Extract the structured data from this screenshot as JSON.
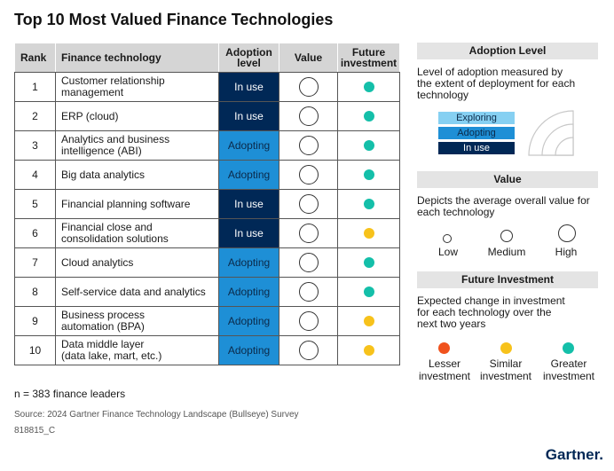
{
  "title": "Top 10 Most Valued Finance Technologies",
  "table": {
    "headers": {
      "rank": "Rank",
      "technology": "Finance technology",
      "adoption_line1": "Adoption",
      "adoption_line2": "level",
      "value": "Value",
      "future_line1": "Future",
      "future_line2": "investment"
    },
    "rows": [
      {
        "rank": "1",
        "tech_line1": "Customer relationship",
        "tech_line2": "management",
        "adoption": "In use",
        "value": "high",
        "future": "greater"
      },
      {
        "rank": "2",
        "tech_line1": "ERP (cloud)",
        "tech_line2": "",
        "adoption": "In use",
        "value": "high",
        "future": "greater"
      },
      {
        "rank": "3",
        "tech_line1": "Analytics and business",
        "tech_line2": "intelligence (ABI)",
        "adoption": "Adopting",
        "value": "high",
        "future": "greater"
      },
      {
        "rank": "4",
        "tech_line1": "Big data analytics",
        "tech_line2": "",
        "adoption": "Adopting",
        "value": "high",
        "future": "greater"
      },
      {
        "rank": "5",
        "tech_line1": "Financial planning software",
        "tech_line2": "",
        "adoption": "In use",
        "value": "high",
        "future": "greater"
      },
      {
        "rank": "6",
        "tech_line1": "Financial close and",
        "tech_line2": "consolidation solutions",
        "adoption": "In use",
        "value": "high",
        "future": "similar"
      },
      {
        "rank": "7",
        "tech_line1": "Cloud analytics",
        "tech_line2": "",
        "adoption": "Adopting",
        "value": "high",
        "future": "greater"
      },
      {
        "rank": "8",
        "tech_line1": "Self-service data and analytics",
        "tech_line2": "",
        "adoption": "Adopting",
        "value": "high",
        "future": "greater"
      },
      {
        "rank": "9",
        "tech_line1": "Business process",
        "tech_line2": "automation (BPA)",
        "adoption": "Adopting",
        "value": "high",
        "future": "similar"
      },
      {
        "rank": "10",
        "tech_line1": "Data middle layer",
        "tech_line2": "(data lake, mart, etc.)",
        "adoption": "Adopting",
        "value": "high",
        "future": "similar"
      }
    ]
  },
  "footer": {
    "n": "n = 383 finance leaders",
    "source": "Source: 2024 Gartner Finance Technology Landscape (Bullseye) Survey",
    "id": "818815_C",
    "logo": "Gartner."
  },
  "legend": {
    "adoption": {
      "title": "Adoption Level",
      "desc_line1": "Level of adoption measured by",
      "desc_line2": "the extent of deployment for each",
      "desc_line3": "technology",
      "levels": [
        "Exploring",
        "Adopting",
        "In use"
      ]
    },
    "value": {
      "title": "Value",
      "desc_line1": "Depicts the average overall value for",
      "desc_line2": "each technology",
      "levels": [
        "Low",
        "Medium",
        "High"
      ]
    },
    "future": {
      "title": "Future Investment",
      "desc_line1": "Expected change in investment",
      "desc_line2": "for each technology over the",
      "desc_line3": "next two years",
      "levels": [
        {
          "line1": "Lesser",
          "line2": "investment"
        },
        {
          "line1": "Similar",
          "line2": "investment"
        },
        {
          "line1": "Greater",
          "line2": "investment"
        }
      ]
    }
  },
  "colors": {
    "in_use": "#002856",
    "adopting": "#1e8fd6",
    "exploring": "#86d0f2",
    "lesser": "#f0521d",
    "similar": "#f7c21b",
    "greater": "#14bfa9"
  }
}
